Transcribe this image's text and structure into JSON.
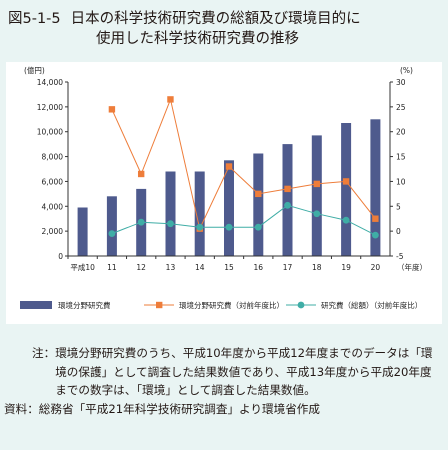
{
  "figure": {
    "number": "図5-1-5",
    "title_line1": "日本の科学技術研究費の総額及び環境目的に",
    "title_line2": "使用した科学技術研究費の推移"
  },
  "notes": {
    "note_label": "注：",
    "note_text": "環境分野研究費のうち、平成10年度から平成12年度までのデータは「環境の保護」として調査した結果数値であり、平成13年度から平成20年度までの数字は、「環境」として調査した結果数値。",
    "source_label": "資料：",
    "source_text": "総務省「平成21年科学技術研究調査」より環境省作成"
  },
  "colors": {
    "bar": "#4e5a8d",
    "orange": "#ee7d3a",
    "teal": "#3fada6",
    "background": "#e9f4f3"
  },
  "chart_data": {
    "type": "bar",
    "categories": [
      "平成10",
      "11",
      "12",
      "13",
      "14",
      "15",
      "16",
      "17",
      "18",
      "19",
      "20"
    ],
    "x_unit_label": "（年度）",
    "left_axis": {
      "unit_label": "(億円)",
      "range": [
        0,
        14000
      ],
      "ticks": [
        "0",
        "2,000",
        "4,000",
        "6,000",
        "8,000",
        "10,000",
        "12,000",
        "14,000"
      ]
    },
    "right_axis": {
      "unit_label": "(%)",
      "range": [
        -5,
        30
      ],
      "ticks": [
        "-5",
        "0",
        "5",
        "10",
        "15",
        "20",
        "25",
        "30"
      ]
    },
    "series": [
      {
        "name": "環境分野研究費",
        "type": "bar",
        "axis": "left",
        "values": [
          3900,
          4800,
          5400,
          6800,
          6800,
          7700,
          8250,
          9000,
          9700,
          10700,
          11000
        ]
      },
      {
        "name": "環境分野研究費（対前年度比）",
        "type": "line",
        "axis": "right",
        "marker": "square",
        "values": [
          null,
          24.5,
          11.5,
          26.5,
          0.5,
          13,
          7.5,
          8.5,
          9.5,
          10,
          2.5
        ]
      },
      {
        "name": "研究費（総額）（対前年度比）",
        "type": "line",
        "axis": "right",
        "marker": "circle",
        "values": [
          null,
          -0.5,
          1.8,
          1.5,
          0.8,
          0.8,
          0.8,
          5.2,
          3.5,
          2.2,
          -0.8
        ]
      }
    ],
    "grid": false,
    "legend_position": "bottom"
  }
}
